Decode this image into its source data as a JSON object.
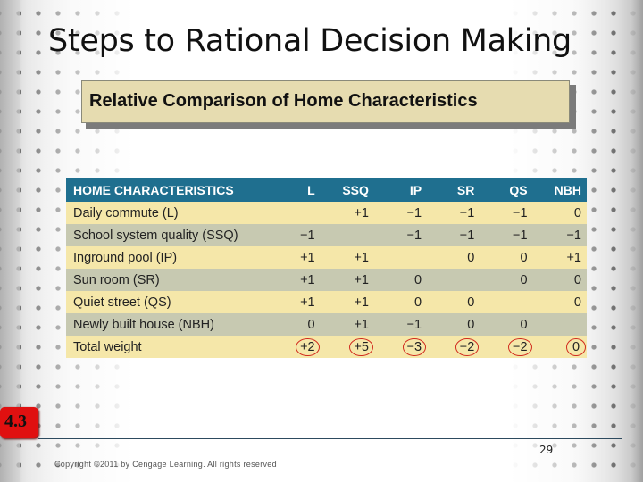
{
  "slide": {
    "title": "Steps to Rational Decision Making",
    "subtitle": "Relative Comparison of Home Characteristics",
    "badge": "4.3",
    "page_number": "29",
    "copyright": "Copyright ©2011 by Cengage Learning.  All rights reserved"
  },
  "table": {
    "headers": [
      "HOME CHARACTERISTICS",
      "L",
      "SSQ",
      "IP",
      "SR",
      "QS",
      "NBH"
    ],
    "rows": [
      {
        "label": "Daily commute (L)",
        "values": [
          "",
          "+1",
          "−1",
          "−1",
          "−1",
          "0"
        ]
      },
      {
        "label": "School system quality (SSQ)",
        "values": [
          "−1",
          "",
          "−1",
          "−1",
          "−1",
          "−1"
        ]
      },
      {
        "label": "Inground pool (IP)",
        "values": [
          "+1",
          "+1",
          "",
          "0",
          "0",
          "+1"
        ]
      },
      {
        "label": "Sun room (SR)",
        "values": [
          "+1",
          "+1",
          "0",
          "",
          "0",
          "0"
        ]
      },
      {
        "label": "Quiet street (QS)",
        "values": [
          "+1",
          "+1",
          "0",
          "0",
          "",
          "0"
        ]
      },
      {
        "label": "Newly built house (NBH)",
        "values": [
          "0",
          "+1",
          "−1",
          "0",
          "0",
          ""
        ]
      }
    ],
    "total": {
      "label": "Total weight",
      "values": [
        "+2",
        "+5",
        "−3",
        "−2",
        "−2",
        "0"
      ]
    }
  },
  "colors": {
    "header_bg": "#1f6f8f",
    "row_light": "#f5e7a9",
    "row_dark": "#c7c9b1",
    "circle": "#d12b1e",
    "badge": "#e01010",
    "subtitle_bg": "#e6dcb0"
  }
}
